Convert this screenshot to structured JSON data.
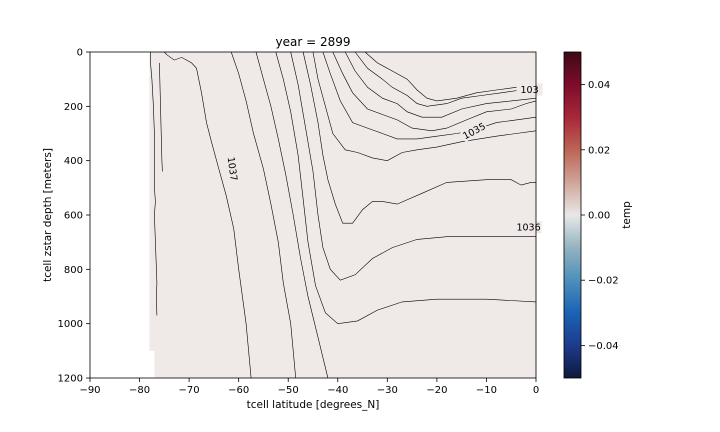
{
  "chart_data": {
    "type": "heatmap",
    "title": "year = 2899",
    "xlabel": "tcell latitude [degrees_N]",
    "ylabel": "tcell zstar depth [meters]",
    "xlim": [
      -90,
      0
    ],
    "ylim": [
      1200,
      0
    ],
    "y_inverted": true,
    "x_ticks": [
      -90,
      -80,
      -70,
      -60,
      -50,
      -40,
      -30,
      -20,
      -10,
      0
    ],
    "x_tick_labels": [
      "−90",
      "−80",
      "−70",
      "−60",
      "−50",
      "−40",
      "−30",
      "−20",
      "−10",
      "0"
    ],
    "y_ticks": [
      0,
      200,
      400,
      600,
      800,
      1000,
      1200
    ],
    "y_tick_labels": [
      "0",
      "200",
      "400",
      "600",
      "800",
      "1000",
      "1200"
    ],
    "fill": {
      "field": "temp",
      "value": 0.0,
      "color": "#efe9e8",
      "extent": [
        {
          "x_from": -78,
          "x_to": -77,
          "depth_to": 1100
        },
        {
          "x_from": -77,
          "x_to": 0,
          "depth_to": 1200
        }
      ]
    },
    "colorbar": {
      "label": "temp",
      "vmin": -0.05,
      "vmax": 0.05,
      "ticks": [
        -0.04,
        -0.02,
        0.0,
        0.02,
        0.04
      ],
      "tick_labels": [
        "−0.04",
        "−0.02",
        "0.00",
        "0.02",
        "0.04"
      ],
      "colormap": [
        "#0d1a3d",
        "#1d3b8c",
        "#1b63b5",
        "#4d8fba",
        "#93b3c0",
        "#e8e8e8",
        "#cfa598",
        "#bd6455",
        "#a8273a",
        "#7d0c2b",
        "#3d0a16"
      ]
    },
    "contour_color": "#000000",
    "contours": [
      {
        "points": [
          [
            -77.8,
            0
          ],
          [
            -77.8,
            40
          ],
          [
            -77.5,
            100
          ],
          [
            -77.2,
            200
          ],
          [
            -77,
            300
          ],
          [
            -77,
            400
          ],
          [
            -77,
            500
          ],
          [
            -76.8,
            550
          ],
          [
            -77,
            600
          ],
          [
            -76.8,
            700
          ],
          [
            -76.6,
            800
          ],
          [
            -76.5,
            850
          ],
          [
            -76.6,
            900
          ],
          [
            -76.5,
            970
          ]
        ]
      },
      {
        "points": [
          [
            -76,
            40
          ],
          [
            -75.5,
            400
          ],
          [
            -75.4,
            440
          ]
        ]
      },
      {
        "points": [
          [
            -75,
            0
          ],
          [
            -74.5,
            10
          ],
          [
            -73,
            30
          ],
          [
            -71.5,
            20
          ],
          [
            -69.5,
            40
          ],
          [
            -68.5,
            60
          ],
          [
            -67.5,
            150
          ],
          [
            -66.5,
            260
          ],
          [
            -65.5,
            330
          ],
          [
            -64,
            430
          ],
          [
            -62.5,
            530
          ],
          [
            -61,
            650
          ],
          [
            -60,
            800
          ],
          [
            -58.5,
            1000
          ],
          [
            -57.5,
            1200
          ]
        ],
        "label": "1037"
      },
      {
        "points": [
          [
            -61.5,
            0
          ],
          [
            -60,
            80
          ],
          [
            -58.5,
            180
          ],
          [
            -57,
            300
          ],
          [
            -55,
            430
          ],
          [
            -53.5,
            560
          ],
          [
            -52,
            700
          ],
          [
            -51,
            850
          ],
          [
            -49.5,
            1000
          ],
          [
            -48.5,
            1200
          ]
        ]
      },
      {
        "points": [
          [
            -56.5,
            0
          ],
          [
            -55,
            100
          ],
          [
            -53.5,
            200
          ],
          [
            -52,
            320
          ],
          [
            -50.5,
            450
          ],
          [
            -49,
            600
          ],
          [
            -47.5,
            760
          ],
          [
            -46,
            900
          ],
          [
            -44,
            1050
          ],
          [
            -42,
            1200
          ]
        ]
      },
      {
        "points": [
          [
            -52.5,
            0
          ],
          [
            -51,
            100
          ],
          [
            -49.5,
            220
          ],
          [
            -48,
            380
          ],
          [
            -47,
            540
          ],
          [
            -46,
            700
          ],
          [
            -44.5,
            860
          ],
          [
            -42.5,
            960
          ],
          [
            -40,
            1000
          ],
          [
            -36,
            990
          ],
          [
            -32,
            950
          ],
          [
            -27,
            920
          ],
          [
            -20,
            910
          ],
          [
            -10,
            910
          ],
          [
            0,
            920
          ]
        ]
      },
      {
        "points": [
          [
            -49.5,
            0
          ],
          [
            -48,
            120
          ],
          [
            -46.5,
            280
          ],
          [
            -45,
            440
          ],
          [
            -44,
            600
          ],
          [
            -43,
            720
          ],
          [
            -41.5,
            800
          ],
          [
            -39.5,
            840
          ],
          [
            -36.5,
            820
          ],
          [
            -33,
            760
          ],
          [
            -29,
            720
          ],
          [
            -24,
            690
          ],
          [
            -18,
            680
          ],
          [
            -10,
            680
          ],
          [
            0,
            680
          ]
        ]
      },
      {
        "points": [
          [
            -47,
            0
          ],
          [
            -45.5,
            120
          ],
          [
            -44,
            260
          ],
          [
            -43,
            380
          ],
          [
            -42,
            470
          ],
          [
            -40.5,
            560
          ],
          [
            -39,
            630
          ],
          [
            -37,
            630
          ],
          [
            -35,
            580
          ],
          [
            -33,
            550
          ],
          [
            -31,
            550
          ],
          [
            -28,
            560
          ],
          [
            -23,
            520
          ],
          [
            -18,
            480
          ],
          [
            -10,
            470
          ],
          [
            -5,
            470
          ],
          [
            -3,
            490
          ],
          [
            -1,
            480
          ],
          [
            0,
            480
          ]
        ]
      },
      {
        "points": [
          [
            -45,
            0
          ],
          [
            -44,
            100
          ],
          [
            -42.5,
            200
          ],
          [
            -41,
            300
          ],
          [
            -38.5,
            360
          ],
          [
            -36,
            370
          ],
          [
            -33,
            390
          ],
          [
            -30,
            400
          ],
          [
            -27,
            370
          ],
          [
            -24,
            360
          ],
          [
            -20,
            350
          ],
          [
            -15,
            330
          ],
          [
            -8,
            310
          ],
          [
            -4,
            300
          ],
          [
            0,
            290
          ]
        ]
      },
      {
        "points": [
          [
            -43,
            0
          ],
          [
            -41.5,
            80
          ],
          [
            -39.5,
            180
          ],
          [
            -37,
            260
          ],
          [
            -34,
            280
          ],
          [
            -31,
            300
          ],
          [
            -28,
            320
          ],
          [
            -24,
            320
          ],
          [
            -20,
            310
          ],
          [
            -16,
            300
          ],
          [
            -13,
            290
          ],
          [
            -8,
            260
          ],
          [
            -4,
            250
          ],
          [
            0,
            240
          ]
        ]
      },
      {
        "points": [
          [
            -41,
            0
          ],
          [
            -39,
            80
          ],
          [
            -37,
            150
          ],
          [
            -34,
            210
          ],
          [
            -31,
            230
          ],
          [
            -28,
            250
          ],
          [
            -25,
            280
          ],
          [
            -21,
            290
          ],
          [
            -18,
            280
          ],
          [
            -14,
            250
          ],
          [
            -10,
            220
          ],
          [
            -5,
            210
          ],
          [
            -2,
            190
          ],
          [
            0,
            180
          ]
        ]
      },
      {
        "points": [
          [
            -38.5,
            0
          ],
          [
            -36.5,
            70
          ],
          [
            -34,
            130
          ],
          [
            -31,
            170
          ],
          [
            -28,
            190
          ],
          [
            -26,
            220
          ],
          [
            -23,
            240
          ],
          [
            -19,
            240
          ],
          [
            -15,
            210
          ],
          [
            -10,
            190
          ],
          [
            -5,
            180
          ],
          [
            0,
            170
          ]
        ]
      },
      {
        "points": [
          [
            -36.5,
            0
          ],
          [
            -34,
            60
          ],
          [
            -31,
            100
          ],
          [
            -29,
            130
          ],
          [
            -26,
            160
          ],
          [
            -24,
            190
          ],
          [
            -22,
            200
          ],
          [
            -18,
            190
          ],
          [
            -15,
            170
          ],
          [
            -11,
            160
          ],
          [
            -7,
            150
          ],
          [
            -3,
            140
          ],
          [
            0,
            130
          ]
        ]
      },
      {
        "points": [
          [
            -34.5,
            0
          ],
          [
            -32,
            40
          ],
          [
            -29,
            70
          ],
          [
            -26,
            100
          ],
          [
            -24,
            140
          ],
          [
            -22,
            170
          ],
          [
            -20,
            180
          ],
          [
            -16,
            170
          ],
          [
            -12,
            150
          ],
          [
            -8,
            140
          ],
          [
            -4,
            130
          ],
          [
            0,
            120
          ]
        ]
      }
    ],
    "contour_labels": [
      {
        "text": "1037",
        "x": -61.2,
        "depth": 430,
        "rotate": 82
      },
      {
        "text": "1035",
        "x": -12.5,
        "depth": 290,
        "rotate": -28
      },
      {
        "text": "1036",
        "x": -1.5,
        "depth": 645,
        "rotate": 0
      },
      {
        "text": "103",
        "x": -1.3,
        "depth": 138,
        "rotate": 0
      }
    ]
  }
}
